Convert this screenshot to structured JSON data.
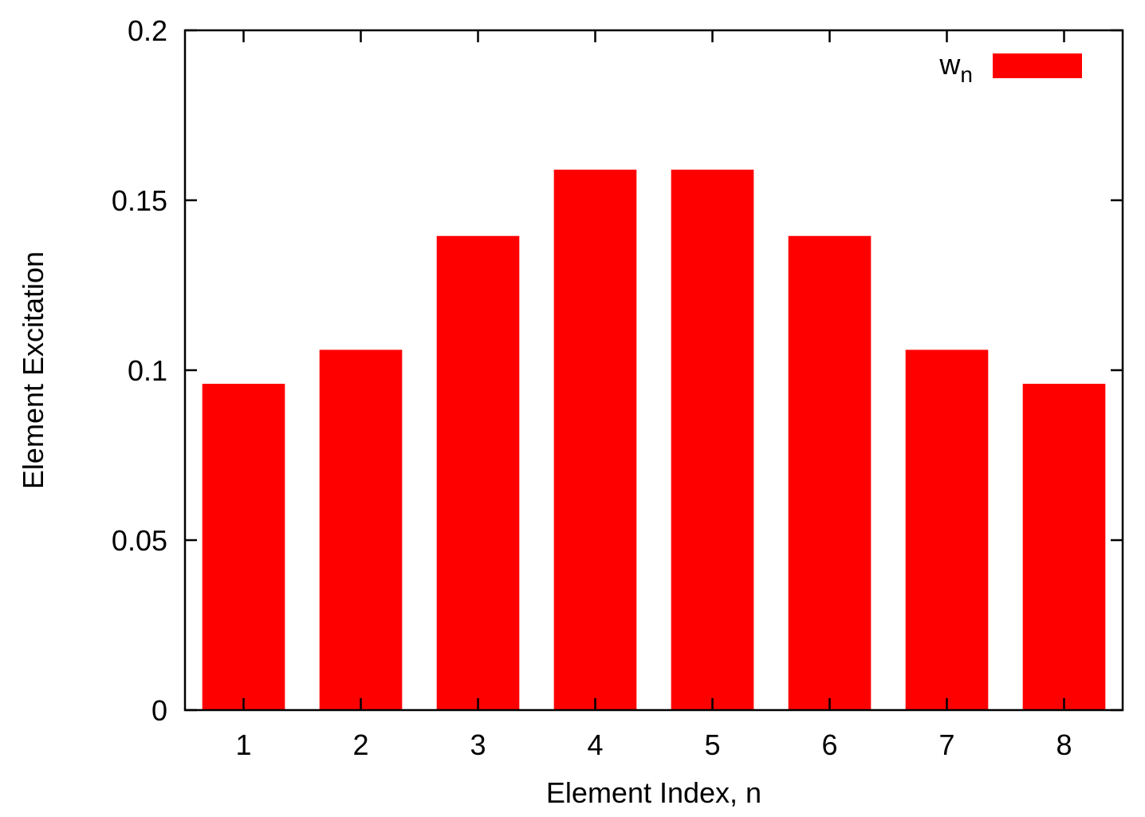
{
  "chart_data": {
    "type": "bar",
    "title": "",
    "xlabel": "Element Index, n",
    "ylabel": "Element Excitation",
    "categories": [
      "1",
      "2",
      "3",
      "4",
      "5",
      "6",
      "7",
      "8"
    ],
    "series": [
      {
        "name": "w",
        "name_subscript": "n",
        "color": "#ff0000",
        "values": [
          0.096,
          0.106,
          0.1395,
          0.159,
          0.159,
          0.1395,
          0.106,
          0.096
        ]
      }
    ],
    "ylim": [
      0,
      0.2
    ],
    "yticks": [
      {
        "value": 0,
        "label": "0"
      },
      {
        "value": 0.05,
        "label": "0.05"
      },
      {
        "value": 0.1,
        "label": "0.1"
      },
      {
        "value": 0.15,
        "label": "0.15"
      },
      {
        "value": 0.2,
        "label": "0.2"
      }
    ],
    "grid": false,
    "legend_position": "top-right"
  }
}
